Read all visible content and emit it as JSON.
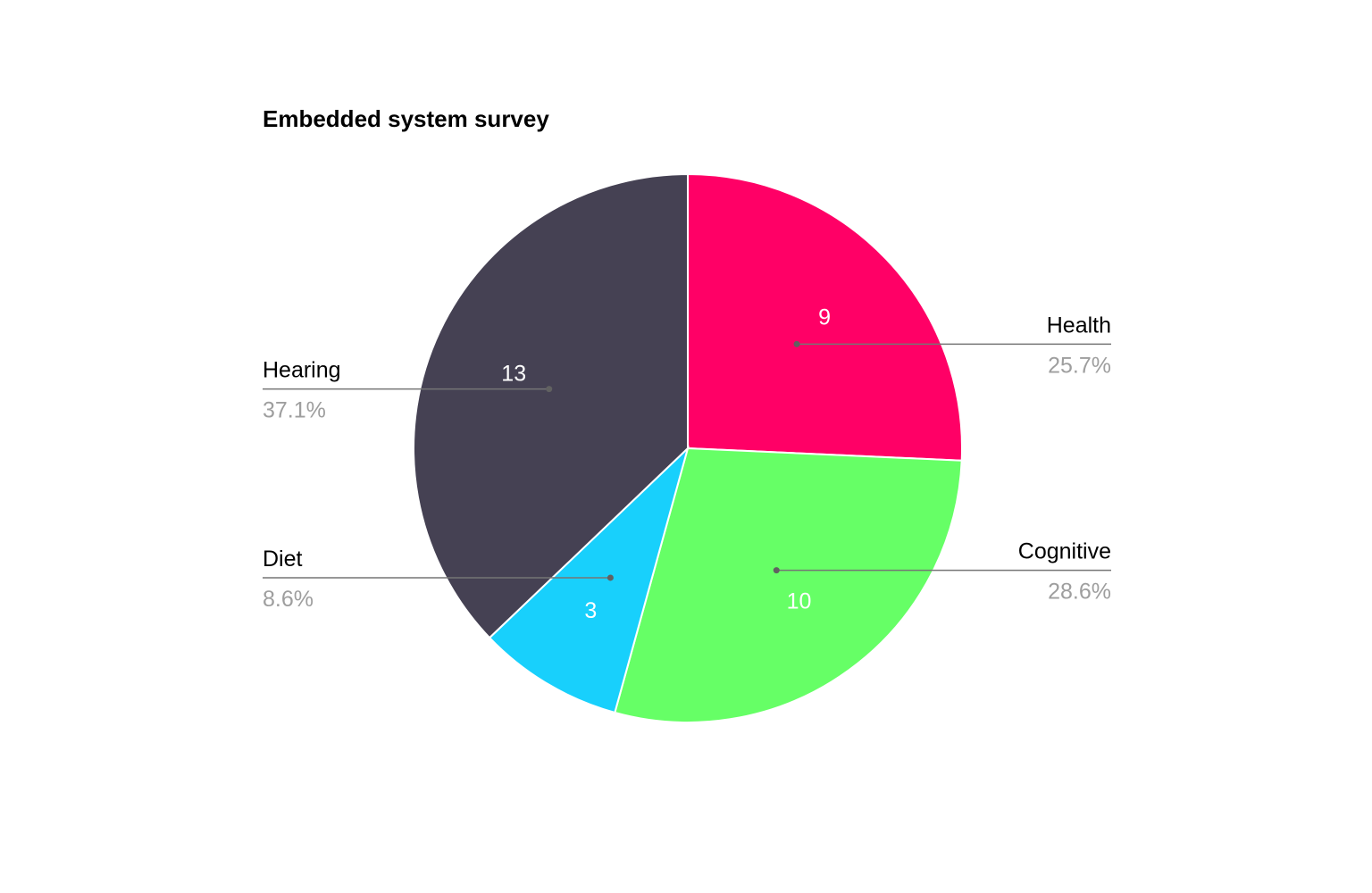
{
  "chart_data": {
    "type": "pie",
    "title": "Embedded system survey",
    "start_angle_deg": 0,
    "direction": "clockwise",
    "slice_border_color": "#ffffff",
    "label_text_color": "#ffffff",
    "slices": [
      {
        "label": "Health",
        "value": 9,
        "percent": "25.7%",
        "color": "#ff0066",
        "side": "right"
      },
      {
        "label": "Cognitive",
        "value": 10,
        "percent": "28.6%",
        "color": "#66ff66",
        "side": "right"
      },
      {
        "label": "Diet",
        "value": 3,
        "percent": "8.6%",
        "color": "#18d0fc",
        "side": "left"
      },
      {
        "label": "Hearing",
        "value": 13,
        "percent": "37.1%",
        "color": "#454153",
        "side": "left"
      }
    ]
  }
}
